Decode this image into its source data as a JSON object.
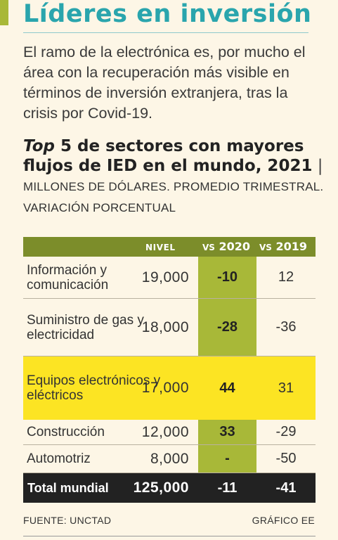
{
  "title": "Líderes en inversión",
  "intro": "El ramo de la electrónica es, por mucho el área con la recuperación más visible en términos de inversión extranjera, tras la crisis por Covid-19.",
  "subtitle": {
    "top_word": "Top",
    "rest": " 5 de sectores con mayores flujos de IED en el mundo, 2021",
    "separator": " | ",
    "unit": "MILLONES DE DÓLARES. PROMEDIO TRIMESTRAL. VARIACIÓN PORCENTUAL"
  },
  "colors": {
    "title": "#2aa5ad",
    "header": "#7c8d2a",
    "highlight_column": "#a8b838",
    "highlight_row": "#fce423",
    "total_row": "#222222",
    "background": "#fdf6e6"
  },
  "chart_data": {
    "type": "table",
    "columns": [
      "NIVEL",
      "VS 2020",
      "VS 2019"
    ],
    "header": {
      "nivel": "NIVEL",
      "v20_prefix": "VS",
      "v20_year": "2020",
      "v19_prefix": "VS",
      "v19_year": "2019"
    },
    "rows": [
      {
        "name": "Información y comunicación",
        "nivel": "19,000",
        "vs2020": "-10",
        "vs2019": "12",
        "highlight": false
      },
      {
        "name": "Suministro de gas y electricidad",
        "nivel": "18,000",
        "vs2020": "-28",
        "vs2019": "-36",
        "highlight": false
      },
      {
        "name": "Equipos electrónicos y eléctricos",
        "nivel": "17,000",
        "vs2020": "44",
        "vs2019": "31",
        "highlight": true
      },
      {
        "name": "Construcción",
        "nivel": "12,000",
        "vs2020": "33",
        "vs2019": "-29",
        "highlight": false
      },
      {
        "name": "Automotriz",
        "nivel": "8,000",
        "vs2020": "-",
        "vs2019": "-50",
        "highlight": false
      }
    ],
    "total": {
      "name": "Total mundial",
      "nivel": "125,000",
      "vs2020": "-11",
      "vs2019": "-41"
    }
  },
  "footer": {
    "source": "FUENTE: UNCTAD",
    "credit": "GRÁFICO EE"
  }
}
